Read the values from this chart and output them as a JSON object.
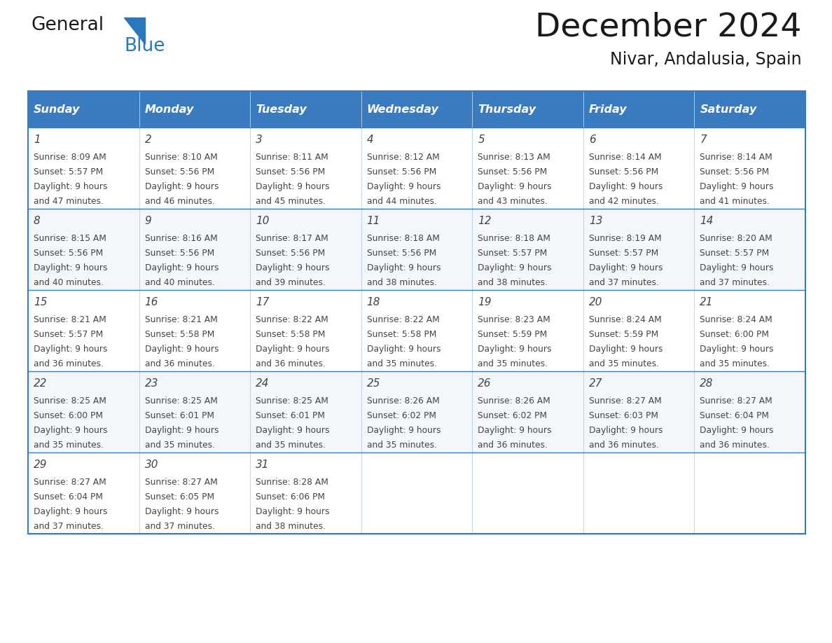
{
  "title": "December 2024",
  "subtitle": "Nivar, Andalusia, Spain",
  "header_color": "#3a7abf",
  "header_text_color": "#ffffff",
  "border_color": "#3a7abf",
  "text_color": "#444444",
  "days_of_week": [
    "Sunday",
    "Monday",
    "Tuesday",
    "Wednesday",
    "Thursday",
    "Friday",
    "Saturday"
  ],
  "calendar_data": [
    [
      {
        "day": 1,
        "sunrise": "8:09 AM",
        "sunset": "5:57 PM",
        "daylight_h": "9 hours",
        "daylight_m": "and 47 minutes."
      },
      {
        "day": 2,
        "sunrise": "8:10 AM",
        "sunset": "5:56 PM",
        "daylight_h": "9 hours",
        "daylight_m": "and 46 minutes."
      },
      {
        "day": 3,
        "sunrise": "8:11 AM",
        "sunset": "5:56 PM",
        "daylight_h": "9 hours",
        "daylight_m": "and 45 minutes."
      },
      {
        "day": 4,
        "sunrise": "8:12 AM",
        "sunset": "5:56 PM",
        "daylight_h": "9 hours",
        "daylight_m": "and 44 minutes."
      },
      {
        "day": 5,
        "sunrise": "8:13 AM",
        "sunset": "5:56 PM",
        "daylight_h": "9 hours",
        "daylight_m": "and 43 minutes."
      },
      {
        "day": 6,
        "sunrise": "8:14 AM",
        "sunset": "5:56 PM",
        "daylight_h": "9 hours",
        "daylight_m": "and 42 minutes."
      },
      {
        "day": 7,
        "sunrise": "8:14 AM",
        "sunset": "5:56 PM",
        "daylight_h": "9 hours",
        "daylight_m": "and 41 minutes."
      }
    ],
    [
      {
        "day": 8,
        "sunrise": "8:15 AM",
        "sunset": "5:56 PM",
        "daylight_h": "9 hours",
        "daylight_m": "and 40 minutes."
      },
      {
        "day": 9,
        "sunrise": "8:16 AM",
        "sunset": "5:56 PM",
        "daylight_h": "9 hours",
        "daylight_m": "and 40 minutes."
      },
      {
        "day": 10,
        "sunrise": "8:17 AM",
        "sunset": "5:56 PM",
        "daylight_h": "9 hours",
        "daylight_m": "and 39 minutes."
      },
      {
        "day": 11,
        "sunrise": "8:18 AM",
        "sunset": "5:56 PM",
        "daylight_h": "9 hours",
        "daylight_m": "and 38 minutes."
      },
      {
        "day": 12,
        "sunrise": "8:18 AM",
        "sunset": "5:57 PM",
        "daylight_h": "9 hours",
        "daylight_m": "and 38 minutes."
      },
      {
        "day": 13,
        "sunrise": "8:19 AM",
        "sunset": "5:57 PM",
        "daylight_h": "9 hours",
        "daylight_m": "and 37 minutes."
      },
      {
        "day": 14,
        "sunrise": "8:20 AM",
        "sunset": "5:57 PM",
        "daylight_h": "9 hours",
        "daylight_m": "and 37 minutes."
      }
    ],
    [
      {
        "day": 15,
        "sunrise": "8:21 AM",
        "sunset": "5:57 PM",
        "daylight_h": "9 hours",
        "daylight_m": "and 36 minutes."
      },
      {
        "day": 16,
        "sunrise": "8:21 AM",
        "sunset": "5:58 PM",
        "daylight_h": "9 hours",
        "daylight_m": "and 36 minutes."
      },
      {
        "day": 17,
        "sunrise": "8:22 AM",
        "sunset": "5:58 PM",
        "daylight_h": "9 hours",
        "daylight_m": "and 36 minutes."
      },
      {
        "day": 18,
        "sunrise": "8:22 AM",
        "sunset": "5:58 PM",
        "daylight_h": "9 hours",
        "daylight_m": "and 35 minutes."
      },
      {
        "day": 19,
        "sunrise": "8:23 AM",
        "sunset": "5:59 PM",
        "daylight_h": "9 hours",
        "daylight_m": "and 35 minutes."
      },
      {
        "day": 20,
        "sunrise": "8:24 AM",
        "sunset": "5:59 PM",
        "daylight_h": "9 hours",
        "daylight_m": "and 35 minutes."
      },
      {
        "day": 21,
        "sunrise": "8:24 AM",
        "sunset": "6:00 PM",
        "daylight_h": "9 hours",
        "daylight_m": "and 35 minutes."
      }
    ],
    [
      {
        "day": 22,
        "sunrise": "8:25 AM",
        "sunset": "6:00 PM",
        "daylight_h": "9 hours",
        "daylight_m": "and 35 minutes."
      },
      {
        "day": 23,
        "sunrise": "8:25 AM",
        "sunset": "6:01 PM",
        "daylight_h": "9 hours",
        "daylight_m": "and 35 minutes."
      },
      {
        "day": 24,
        "sunrise": "8:25 AM",
        "sunset": "6:01 PM",
        "daylight_h": "9 hours",
        "daylight_m": "and 35 minutes."
      },
      {
        "day": 25,
        "sunrise": "8:26 AM",
        "sunset": "6:02 PM",
        "daylight_h": "9 hours",
        "daylight_m": "and 35 minutes."
      },
      {
        "day": 26,
        "sunrise": "8:26 AM",
        "sunset": "6:02 PM",
        "daylight_h": "9 hours",
        "daylight_m": "and 36 minutes."
      },
      {
        "day": 27,
        "sunrise": "8:27 AM",
        "sunset": "6:03 PM",
        "daylight_h": "9 hours",
        "daylight_m": "and 36 minutes."
      },
      {
        "day": 28,
        "sunrise": "8:27 AM",
        "sunset": "6:04 PM",
        "daylight_h": "9 hours",
        "daylight_m": "and 36 minutes."
      }
    ],
    [
      {
        "day": 29,
        "sunrise": "8:27 AM",
        "sunset": "6:04 PM",
        "daylight_h": "9 hours",
        "daylight_m": "and 37 minutes."
      },
      {
        "day": 30,
        "sunrise": "8:27 AM",
        "sunset": "6:05 PM",
        "daylight_h": "9 hours",
        "daylight_m": "and 37 minutes."
      },
      {
        "day": 31,
        "sunrise": "8:28 AM",
        "sunset": "6:06 PM",
        "daylight_h": "9 hours",
        "daylight_m": "and 38 minutes."
      },
      null,
      null,
      null,
      null
    ]
  ],
  "logo_general_color": "#1a1a1a",
  "logo_blue_color": "#2878be"
}
